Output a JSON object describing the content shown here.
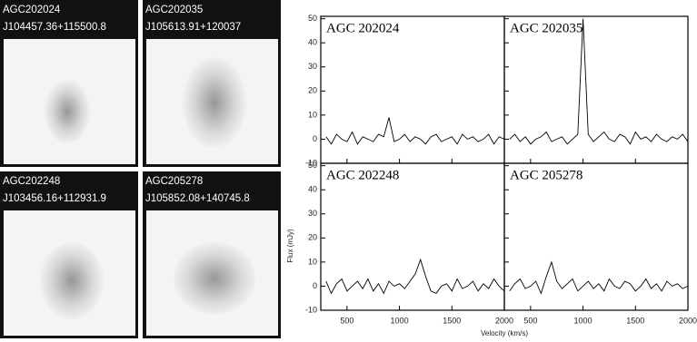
{
  "images": [
    {
      "name": "AGC202024",
      "id": "J104457.36+115500.8"
    },
    {
      "name": "AGC202035",
      "id": "J105613.91+120037"
    },
    {
      "name": "AGC202248",
      "id": "J103456.16+112931.9"
    },
    {
      "name": "AGC205278",
      "id": "J105852.08+140745.8"
    }
  ],
  "chart_data": [
    {
      "type": "line",
      "title": "AGC 202024",
      "color": "#000000",
      "x": [
        300,
        350,
        400,
        450,
        500,
        550,
        600,
        650,
        700,
        750,
        800,
        850,
        900,
        950,
        1000,
        1050,
        1100,
        1150,
        1200,
        1250,
        1300,
        1350,
        1400,
        1450,
        1500,
        1550,
        1600,
        1650,
        1700,
        1750,
        1800,
        1850,
        1900,
        1950,
        2000
      ],
      "values": [
        1,
        -2,
        2,
        0,
        -1,
        3,
        -2,
        1,
        0,
        -1,
        2,
        1,
        9,
        -1,
        0,
        2,
        -1,
        1,
        0,
        -2,
        1,
        2,
        -1,
        0,
        1,
        -2,
        2,
        0,
        1,
        -1,
        0,
        2,
        -2,
        1,
        0
      ],
      "xlim": [
        250,
        2000
      ],
      "ylim": [
        -10,
        51
      ],
      "yticks": [
        -10,
        0,
        10,
        20,
        30,
        40,
        50
      ],
      "xticks": [
        500,
        1000,
        1500,
        2000
      ]
    },
    {
      "type": "line",
      "title": "AGC 202035",
      "color": "#000000",
      "x": [
        300,
        350,
        400,
        450,
        500,
        550,
        600,
        650,
        700,
        750,
        800,
        850,
        900,
        950,
        1000,
        1050,
        1100,
        1150,
        1200,
        1250,
        1300,
        1350,
        1400,
        1450,
        1500,
        1550,
        1600,
        1650,
        1700,
        1750,
        1800,
        1850,
        1900,
        1950,
        2000
      ],
      "values": [
        0,
        2,
        -1,
        1,
        -2,
        0,
        1,
        3,
        -1,
        0,
        1,
        -2,
        0,
        2,
        50,
        2,
        -1,
        1,
        3,
        0,
        -1,
        2,
        1,
        -2,
        3,
        0,
        1,
        -1,
        2,
        0,
        -1,
        1,
        0,
        2,
        -1
      ],
      "xlim": [
        250,
        2000
      ],
      "ylim": [
        -10,
        51
      ],
      "yticks": [
        -10,
        0,
        10,
        20,
        30,
        40,
        50
      ],
      "xticks": [
        500,
        1000,
        1500,
        2000
      ]
    },
    {
      "type": "line",
      "title": "AGC 202248",
      "color": "#000000",
      "y_label": "Flux (mJy)",
      "x": [
        300,
        350,
        400,
        450,
        500,
        550,
        600,
        650,
        700,
        750,
        800,
        850,
        900,
        950,
        1000,
        1050,
        1100,
        1150,
        1200,
        1250,
        1300,
        1350,
        1400,
        1450,
        1500,
        1550,
        1600,
        1650,
        1700,
        1750,
        1800,
        1850,
        1900,
        1950,
        2000
      ],
      "values": [
        2,
        -3,
        1,
        3,
        -2,
        0,
        2,
        -1,
        3,
        -2,
        1,
        -3,
        2,
        0,
        1,
        -1,
        2,
        5,
        11,
        4,
        -2,
        -3,
        0,
        1,
        -2,
        3,
        -1,
        0,
        2,
        -2,
        1,
        -1,
        3,
        0,
        -2
      ],
      "xlim": [
        250,
        2000
      ],
      "ylim": [
        -10,
        51
      ],
      "yticks": [
        -10,
        0,
        10,
        20,
        30,
        40,
        50
      ],
      "xticks": [
        500,
        1000,
        1500,
        2000
      ]
    },
    {
      "type": "line",
      "title": "AGC 205278",
      "color": "#000000",
      "x_label": "Velocity (km/s)",
      "x": [
        300,
        350,
        400,
        450,
        500,
        550,
        600,
        650,
        700,
        750,
        800,
        850,
        900,
        950,
        1000,
        1050,
        1100,
        1150,
        1200,
        1250,
        1300,
        1350,
        1400,
        1450,
        1500,
        1550,
        1600,
        1650,
        1700,
        1750,
        1800,
        1850,
        1900,
        1950,
        2000
      ],
      "values": [
        -2,
        1,
        3,
        -1,
        0,
        2,
        -3,
        4,
        10,
        2,
        -1,
        1,
        3,
        -2,
        0,
        2,
        -1,
        1,
        -2,
        3,
        0,
        -1,
        2,
        1,
        -2,
        0,
        3,
        -1,
        1,
        -2,
        2,
        0,
        1,
        -1,
        0
      ],
      "xlim": [
        250,
        2000
      ],
      "ylim": [
        -10,
        51
      ],
      "yticks": [
        -10,
        0,
        10,
        20,
        30,
        40,
        50
      ],
      "xticks": [
        500,
        1000,
        1500,
        2000
      ]
    }
  ]
}
